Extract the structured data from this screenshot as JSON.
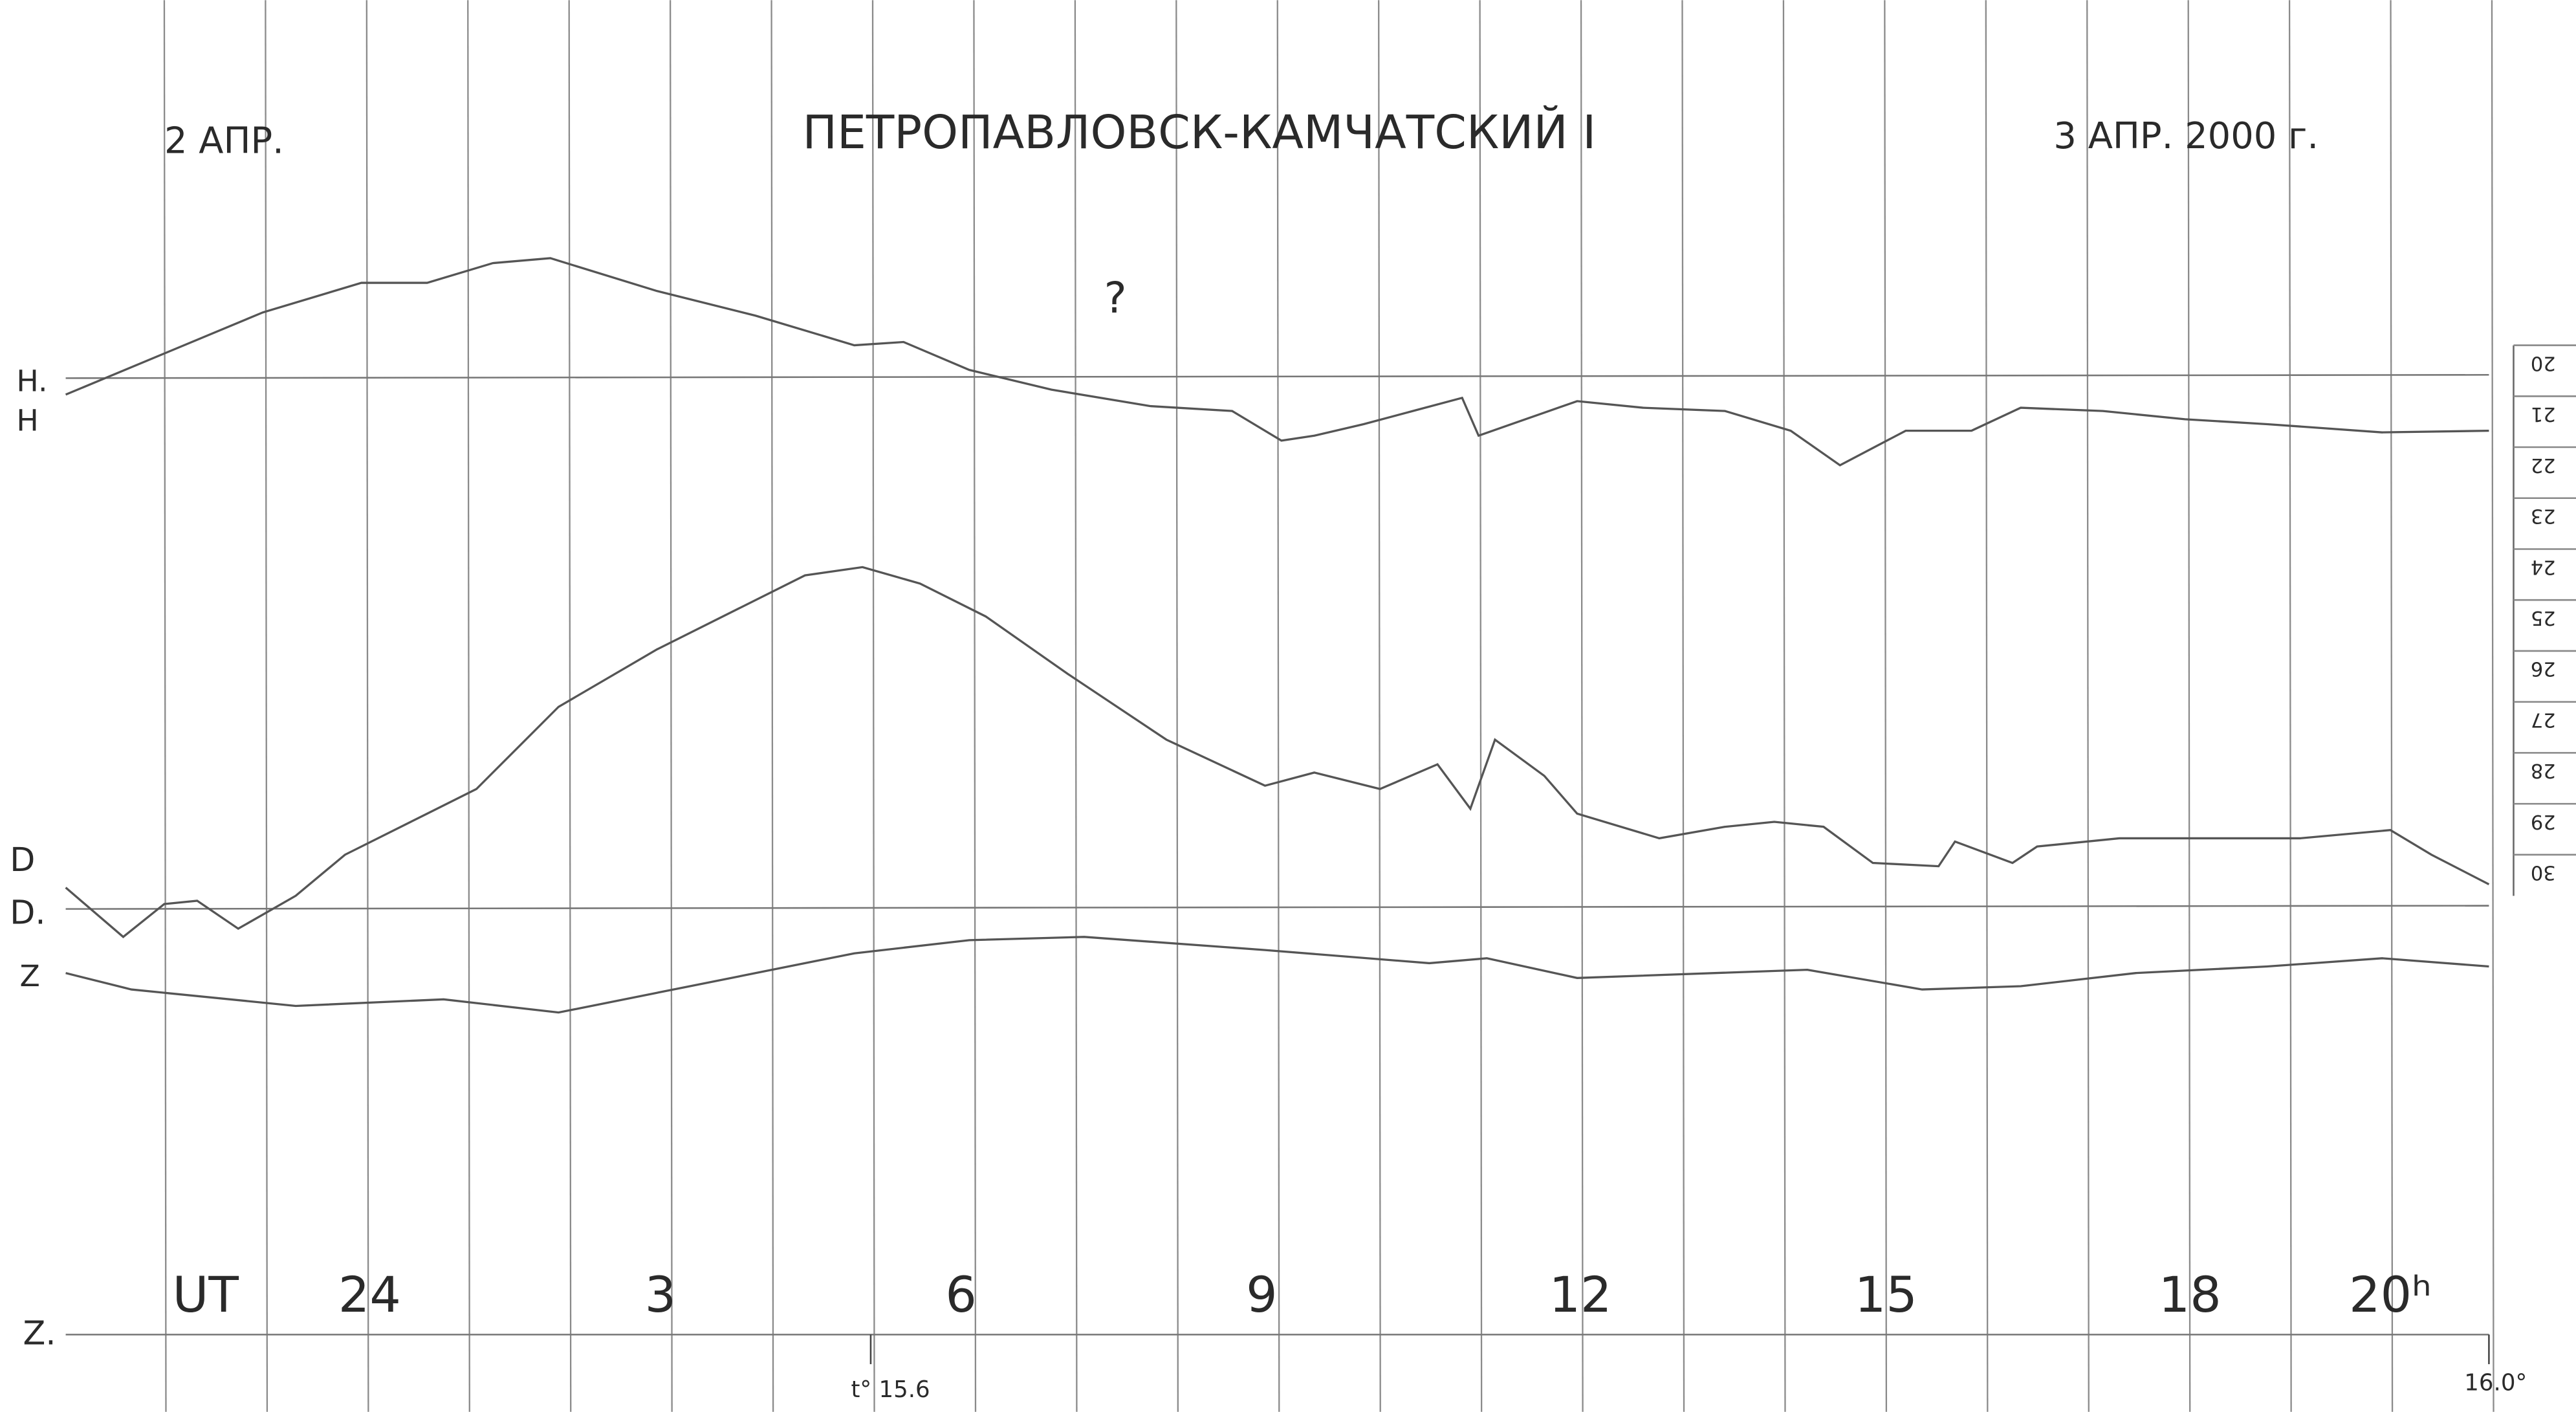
{
  "header": {
    "left_date": "2 АПР.",
    "title": "ПЕТРОПАВЛОВСК-КАМЧАТСКИЙ I",
    "right_date": "3 АПР. 2000 г."
  },
  "note": "?",
  "channels": {
    "h_base": "H.",
    "h": "H",
    "d": "D",
    "d_base": "D.",
    "z": "Z",
    "z_base": "Z."
  },
  "time_axis": {
    "label": "UT",
    "ticks": [
      "24",
      "3",
      "6",
      "9",
      "12",
      "15",
      "18",
      "20ʰ"
    ]
  },
  "temperatures": {
    "start": "t° 15.6",
    "end": "16.0°"
  },
  "scale": [
    "20",
    "21",
    "22",
    "23",
    "24",
    "25",
    "26",
    "27",
    "28",
    "29",
    "30"
  ]
}
